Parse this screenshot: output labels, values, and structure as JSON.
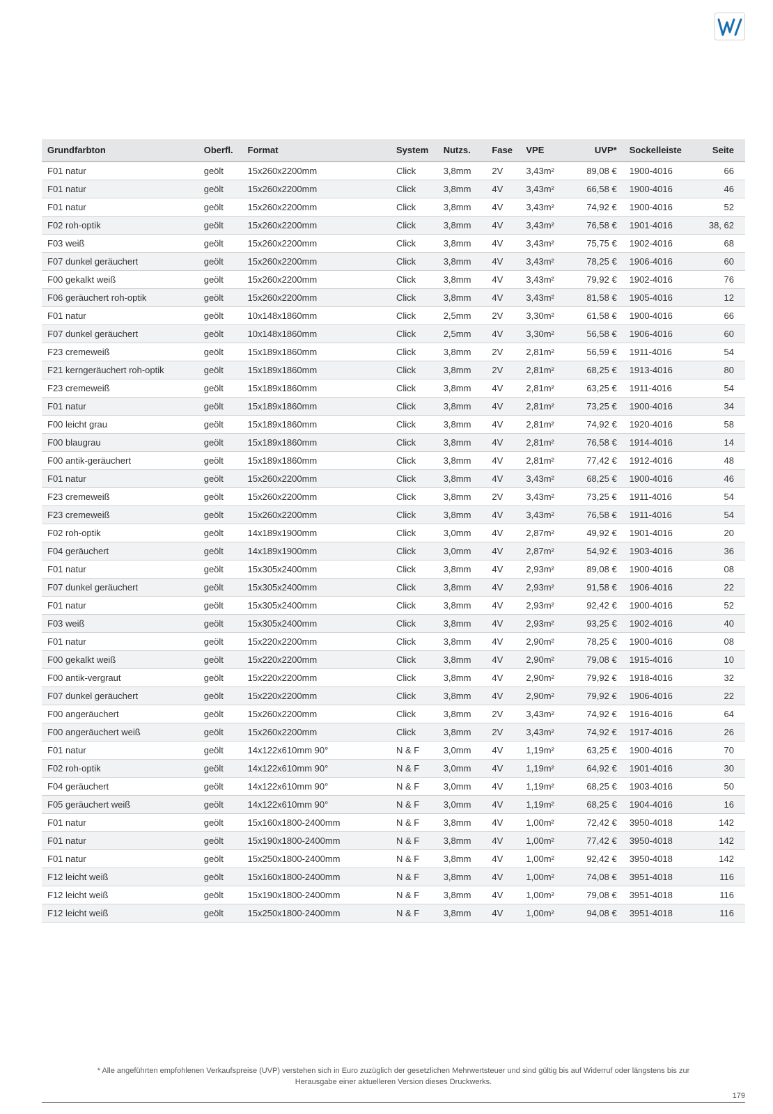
{
  "logo": {
    "fg": "#1b6fb0",
    "bg_border": "#d0d1d3"
  },
  "table": {
    "header_bg": "#e5e6e7",
    "row_alt_bg": "#f1f2f3",
    "border_color": "#d0d1d3",
    "columns": [
      {
        "key": "grundfarbton",
        "label": "Grundfarbton"
      },
      {
        "key": "oberfl",
        "label": "Oberfl."
      },
      {
        "key": "format",
        "label": "Format"
      },
      {
        "key": "system",
        "label": "System"
      },
      {
        "key": "nutzs",
        "label": "Nutzs."
      },
      {
        "key": "fase",
        "label": "Fase"
      },
      {
        "key": "vpe",
        "label": "VPE"
      },
      {
        "key": "uvp",
        "label": "UVP*"
      },
      {
        "key": "sockel",
        "label": "Sockelleiste"
      },
      {
        "key": "seite",
        "label": "Seite"
      }
    ],
    "rows": [
      {
        "grundfarbton": "F01 natur",
        "oberfl": "geölt",
        "format": "15x260x2200mm",
        "system": "Click",
        "nutzs": "3,8mm",
        "fase": "2V",
        "vpe": "3,43m²",
        "uvp": "89,08 €",
        "sockel": "1900-4016",
        "seite": "66"
      },
      {
        "grundfarbton": "F01 natur",
        "oberfl": "geölt",
        "format": "15x260x2200mm",
        "system": "Click",
        "nutzs": "3,8mm",
        "fase": "4V",
        "vpe": "3,43m²",
        "uvp": "66,58 €",
        "sockel": "1900-4016",
        "seite": "46"
      },
      {
        "grundfarbton": "F01 natur",
        "oberfl": "geölt",
        "format": "15x260x2200mm",
        "system": "Click",
        "nutzs": "3,8mm",
        "fase": "4V",
        "vpe": "3,43m²",
        "uvp": "74,92 €",
        "sockel": "1900-4016",
        "seite": "52"
      },
      {
        "grundfarbton": "F02 roh-optik",
        "oberfl": "geölt",
        "format": "15x260x2200mm",
        "system": "Click",
        "nutzs": "3,8mm",
        "fase": "4V",
        "vpe": "3,43m²",
        "uvp": "76,58 €",
        "sockel": "1901-4016",
        "seite": "38, 62"
      },
      {
        "grundfarbton": "F03 weiß",
        "oberfl": "geölt",
        "format": "15x260x2200mm",
        "system": "Click",
        "nutzs": "3,8mm",
        "fase": "4V",
        "vpe": "3,43m²",
        "uvp": "75,75 €",
        "sockel": "1902-4016",
        "seite": "68"
      },
      {
        "grundfarbton": "F07 dunkel geräuchert",
        "oberfl": "geölt",
        "format": "15x260x2200mm",
        "system": "Click",
        "nutzs": "3,8mm",
        "fase": "4V",
        "vpe": "3,43m²",
        "uvp": "78,25 €",
        "sockel": "1906-4016",
        "seite": "60"
      },
      {
        "grundfarbton": "F00 gekalkt weiß",
        "oberfl": "geölt",
        "format": "15x260x2200mm",
        "system": "Click",
        "nutzs": "3,8mm",
        "fase": "4V",
        "vpe": "3,43m²",
        "uvp": "79,92 €",
        "sockel": "1902-4016",
        "seite": "76"
      },
      {
        "grundfarbton": "F06 geräuchert roh-optik",
        "oberfl": "geölt",
        "format": "15x260x2200mm",
        "system": "Click",
        "nutzs": "3,8mm",
        "fase": "4V",
        "vpe": "3,43m²",
        "uvp": "81,58 €",
        "sockel": "1905-4016",
        "seite": "12"
      },
      {
        "grundfarbton": "F01 natur",
        "oberfl": "geölt",
        "format": "10x148x1860mm",
        "system": "Click",
        "nutzs": "2,5mm",
        "fase": "2V",
        "vpe": "3,30m²",
        "uvp": "61,58 €",
        "sockel": "1900-4016",
        "seite": "66"
      },
      {
        "grundfarbton": "F07 dunkel geräuchert",
        "oberfl": "geölt",
        "format": "10x148x1860mm",
        "system": "Click",
        "nutzs": "2,5mm",
        "fase": "4V",
        "vpe": "3,30m²",
        "uvp": "56,58 €",
        "sockel": "1906-4016",
        "seite": "60"
      },
      {
        "grundfarbton": "F23 cremeweiß",
        "oberfl": "geölt",
        "format": "15x189x1860mm",
        "system": "Click",
        "nutzs": "3,8mm",
        "fase": "2V",
        "vpe": "2,81m²",
        "uvp": "56,59 €",
        "sockel": "1911-4016",
        "seite": "54"
      },
      {
        "grundfarbton": "F21 kerngeräuchert roh-optik",
        "oberfl": "geölt",
        "format": "15x189x1860mm",
        "system": "Click",
        "nutzs": "3,8mm",
        "fase": "2V",
        "vpe": "2,81m²",
        "uvp": "68,25 €",
        "sockel": "1913-4016",
        "seite": "80"
      },
      {
        "grundfarbton": "F23 cremeweiß",
        "oberfl": "geölt",
        "format": "15x189x1860mm",
        "system": "Click",
        "nutzs": "3,8mm",
        "fase": "4V",
        "vpe": "2,81m²",
        "uvp": "63,25 €",
        "sockel": "1911-4016",
        "seite": "54"
      },
      {
        "grundfarbton": "F01 natur",
        "oberfl": "geölt",
        "format": "15x189x1860mm",
        "system": "Click",
        "nutzs": "3,8mm",
        "fase": "4V",
        "vpe": "2,81m²",
        "uvp": "73,25 €",
        "sockel": "1900-4016",
        "seite": "34"
      },
      {
        "grundfarbton": "F00 leicht grau",
        "oberfl": "geölt",
        "format": "15x189x1860mm",
        "system": "Click",
        "nutzs": "3,8mm",
        "fase": "4V",
        "vpe": "2,81m²",
        "uvp": "74,92 €",
        "sockel": "1920-4016",
        "seite": "58"
      },
      {
        "grundfarbton": "F00 blaugrau",
        "oberfl": "geölt",
        "format": "15x189x1860mm",
        "system": "Click",
        "nutzs": "3,8mm",
        "fase": "4V",
        "vpe": "2,81m²",
        "uvp": "76,58 €",
        "sockel": "1914-4016",
        "seite": "14"
      },
      {
        "grundfarbton": "F00 antik-geräuchert",
        "oberfl": "geölt",
        "format": "15x189x1860mm",
        "system": "Click",
        "nutzs": "3,8mm",
        "fase": "4V",
        "vpe": "2,81m²",
        "uvp": "77,42 €",
        "sockel": "1912-4016",
        "seite": "48"
      },
      {
        "grundfarbton": "F01 natur",
        "oberfl": "geölt",
        "format": "15x260x2200mm",
        "system": "Click",
        "nutzs": "3,8mm",
        "fase": "4V",
        "vpe": "3,43m²",
        "uvp": "68,25 €",
        "sockel": "1900-4016",
        "seite": "46"
      },
      {
        "grundfarbton": "F23 cremeweiß",
        "oberfl": "geölt",
        "format": "15x260x2200mm",
        "system": "Click",
        "nutzs": "3,8mm",
        "fase": "2V",
        "vpe": "3,43m²",
        "uvp": "73,25 €",
        "sockel": "1911-4016",
        "seite": "54"
      },
      {
        "grundfarbton": "F23 cremeweiß",
        "oberfl": "geölt",
        "format": "15x260x2200mm",
        "system": "Click",
        "nutzs": "3,8mm",
        "fase": "4V",
        "vpe": "3,43m²",
        "uvp": "76,58 €",
        "sockel": "1911-4016",
        "seite": "54"
      },
      {
        "grundfarbton": "F02 roh-optik",
        "oberfl": "geölt",
        "format": "14x189x1900mm",
        "system": "Click",
        "nutzs": "3,0mm",
        "fase": "4V",
        "vpe": "2,87m²",
        "uvp": "49,92 €",
        "sockel": "1901-4016",
        "seite": "20"
      },
      {
        "grundfarbton": "F04 geräuchert",
        "oberfl": "geölt",
        "format": "14x189x1900mm",
        "system": "Click",
        "nutzs": "3,0mm",
        "fase": "4V",
        "vpe": "2,87m²",
        "uvp": "54,92 €",
        "sockel": "1903-4016",
        "seite": "36"
      },
      {
        "grundfarbton": "F01 natur",
        "oberfl": "geölt",
        "format": "15x305x2400mm",
        "system": "Click",
        "nutzs": "3,8mm",
        "fase": "4V",
        "vpe": "2,93m²",
        "uvp": "89,08 €",
        "sockel": "1900-4016",
        "seite": "08"
      },
      {
        "grundfarbton": "F07 dunkel geräuchert",
        "oberfl": "geölt",
        "format": "15x305x2400mm",
        "system": "Click",
        "nutzs": "3,8mm",
        "fase": "4V",
        "vpe": "2,93m²",
        "uvp": "91,58 €",
        "sockel": "1906-4016",
        "seite": "22"
      },
      {
        "grundfarbton": "F01 natur",
        "oberfl": "geölt",
        "format": "15x305x2400mm",
        "system": "Click",
        "nutzs": "3,8mm",
        "fase": "4V",
        "vpe": "2,93m²",
        "uvp": "92,42 €",
        "sockel": "1900-4016",
        "seite": "52"
      },
      {
        "grundfarbton": "F03 weiß",
        "oberfl": "geölt",
        "format": "15x305x2400mm",
        "system": "Click",
        "nutzs": "3,8mm",
        "fase": "4V",
        "vpe": "2,93m²",
        "uvp": "93,25 €",
        "sockel": "1902-4016",
        "seite": "40"
      },
      {
        "grundfarbton": "F01 natur",
        "oberfl": "geölt",
        "format": "15x220x2200mm",
        "system": "Click",
        "nutzs": "3,8mm",
        "fase": "4V",
        "vpe": "2,90m²",
        "uvp": "78,25 €",
        "sockel": "1900-4016",
        "seite": "08"
      },
      {
        "grundfarbton": "F00 gekalkt weiß",
        "oberfl": "geölt",
        "format": "15x220x2200mm",
        "system": "Click",
        "nutzs": "3,8mm",
        "fase": "4V",
        "vpe": "2,90m²",
        "uvp": "79,08 €",
        "sockel": "1915-4016",
        "seite": "10"
      },
      {
        "grundfarbton": "F00 antik-vergraut",
        "oberfl": "geölt",
        "format": "15x220x2200mm",
        "system": "Click",
        "nutzs": "3,8mm",
        "fase": "4V",
        "vpe": "2,90m²",
        "uvp": "79,92 €",
        "sockel": "1918-4016",
        "seite": "32"
      },
      {
        "grundfarbton": "F07 dunkel geräuchert",
        "oberfl": "geölt",
        "format": "15x220x2200mm",
        "system": "Click",
        "nutzs": "3,8mm",
        "fase": "4V",
        "vpe": "2,90m²",
        "uvp": "79,92 €",
        "sockel": "1906-4016",
        "seite": "22"
      },
      {
        "grundfarbton": "F00 angeräuchert",
        "oberfl": "geölt",
        "format": "15x260x2200mm",
        "system": "Click",
        "nutzs": "3,8mm",
        "fase": "2V",
        "vpe": "3,43m²",
        "uvp": "74,92 €",
        "sockel": "1916-4016",
        "seite": "64"
      },
      {
        "grundfarbton": "F00 angeräuchert weiß",
        "oberfl": "geölt",
        "format": "15x260x2200mm",
        "system": "Click",
        "nutzs": "3,8mm",
        "fase": "2V",
        "vpe": "3,43m²",
        "uvp": "74,92 €",
        "sockel": "1917-4016",
        "seite": "26"
      },
      {
        "grundfarbton": "F01 natur",
        "oberfl": "geölt",
        "format": "14x122x610mm 90°",
        "system": "N & F",
        "nutzs": "3,0mm",
        "fase": "4V",
        "vpe": "1,19m²",
        "uvp": "63,25 €",
        "sockel": "1900-4016",
        "seite": "70"
      },
      {
        "grundfarbton": "F02 roh-optik",
        "oberfl": "geölt",
        "format": "14x122x610mm 90°",
        "system": "N & F",
        "nutzs": "3,0mm",
        "fase": "4V",
        "vpe": "1,19m²",
        "uvp": "64,92 €",
        "sockel": "1901-4016",
        "seite": "30"
      },
      {
        "grundfarbton": "F04 geräuchert",
        "oberfl": "geölt",
        "format": "14x122x610mm 90°",
        "system": "N & F",
        "nutzs": "3,0mm",
        "fase": "4V",
        "vpe": "1,19m²",
        "uvp": "68,25 €",
        "sockel": "1903-4016",
        "seite": "50"
      },
      {
        "grundfarbton": "F05 geräuchert weiß",
        "oberfl": "geölt",
        "format": "14x122x610mm 90°",
        "system": "N & F",
        "nutzs": "3,0mm",
        "fase": "4V",
        "vpe": "1,19m²",
        "uvp": "68,25 €",
        "sockel": "1904-4016",
        "seite": "16"
      },
      {
        "grundfarbton": "F01 natur",
        "oberfl": "geölt",
        "format": "15x160x1800-2400mm",
        "system": "N & F",
        "nutzs": "3,8mm",
        "fase": "4V",
        "vpe": "1,00m²",
        "uvp": "72,42 €",
        "sockel": "3950-4018",
        "seite": "142"
      },
      {
        "grundfarbton": "F01 natur",
        "oberfl": "geölt",
        "format": "15x190x1800-2400mm",
        "system": "N & F",
        "nutzs": "3,8mm",
        "fase": "4V",
        "vpe": "1,00m²",
        "uvp": "77,42 €",
        "sockel": "3950-4018",
        "seite": "142"
      },
      {
        "grundfarbton": "F01 natur",
        "oberfl": "geölt",
        "format": "15x250x1800-2400mm",
        "system": "N & F",
        "nutzs": "3,8mm",
        "fase": "4V",
        "vpe": "1,00m²",
        "uvp": "92,42 €",
        "sockel": "3950-4018",
        "seite": "142"
      },
      {
        "grundfarbton": "F12 leicht weiß",
        "oberfl": "geölt",
        "format": "15x160x1800-2400mm",
        "system": "N & F",
        "nutzs": "3,8mm",
        "fase": "4V",
        "vpe": "1,00m²",
        "uvp": "74,08 €",
        "sockel": "3951-4018",
        "seite": "116"
      },
      {
        "grundfarbton": "F12 leicht weiß",
        "oberfl": "geölt",
        "format": "15x190x1800-2400mm",
        "system": "N & F",
        "nutzs": "3,8mm",
        "fase": "4V",
        "vpe": "1,00m²",
        "uvp": "79,08 €",
        "sockel": "3951-4018",
        "seite": "116"
      },
      {
        "grundfarbton": "F12 leicht weiß",
        "oberfl": "geölt",
        "format": "15x250x1800-2400mm",
        "system": "N & F",
        "nutzs": "3,8mm",
        "fase": "4V",
        "vpe": "1,00m²",
        "uvp": "94,08 €",
        "sockel": "3951-4018",
        "seite": "116"
      }
    ]
  },
  "footnote": {
    "line1": "* Alle angeführten empfohlenen Verkaufspreise (UVP) verstehen sich in Euro zuzüglich der gesetzlichen Mehrwertsteuer und sind gültig bis auf Widerruf oder längstens bis zur",
    "line2": "Herausgabe einer aktuelleren Version dieses Druckwerks."
  },
  "page_number": "179"
}
